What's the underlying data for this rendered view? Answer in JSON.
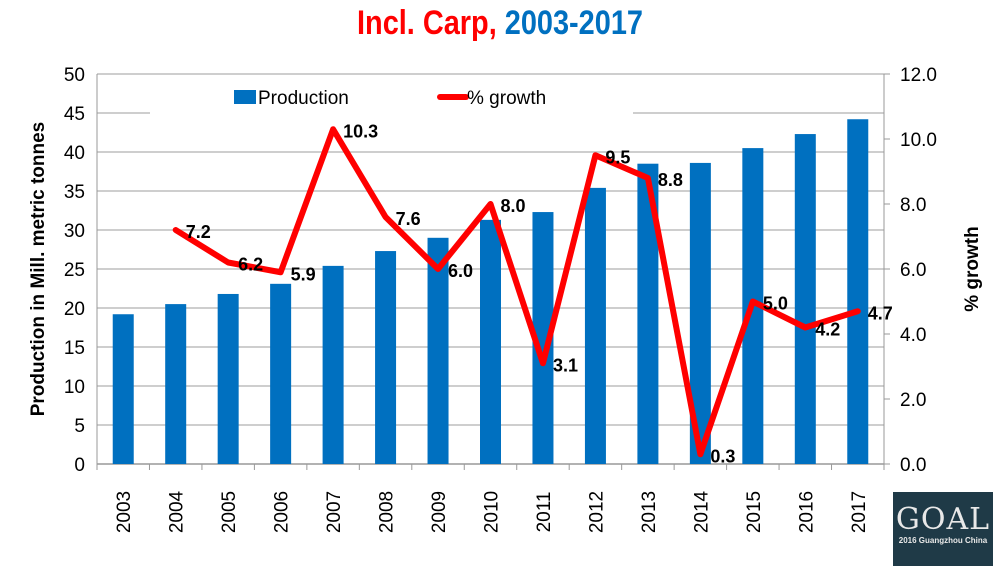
{
  "title": {
    "part1": "Incl. Carp,",
    "part2": " 2003-2017"
  },
  "logo": {
    "text": "GOAL",
    "sub": "2016 Guangzhou China"
  },
  "chart_data": {
    "type": "bar+line",
    "title": "Incl. Carp, 2003-2017",
    "categories": [
      "2003",
      "2004",
      "2005",
      "2006",
      "2007",
      "2008",
      "2009",
      "2010",
      "2011",
      "2012",
      "2013",
      "2014",
      "2015",
      "2016",
      "2017"
    ],
    "series": [
      {
        "name": "Production",
        "type": "bar",
        "axis": "left",
        "color": "#0070c0",
        "values": [
          19.2,
          20.5,
          21.8,
          23.1,
          25.4,
          27.3,
          29.0,
          31.3,
          32.3,
          35.4,
          38.5,
          38.6,
          40.5,
          42.3,
          44.2
        ]
      },
      {
        "name": "% growth",
        "type": "line",
        "axis": "right",
        "color": "#ff0000",
        "values": [
          null,
          7.2,
          6.2,
          5.9,
          10.3,
          7.6,
          6.0,
          8.0,
          3.1,
          9.5,
          8.8,
          0.3,
          5.0,
          4.2,
          4.7
        ],
        "labels": [
          "",
          "7.2",
          "6.2",
          "5.9",
          "10.3",
          "7.6",
          "6.0",
          "8.0",
          "3.1",
          "9.5",
          "8.8",
          "0.3",
          "5.0",
          "4.2",
          "4.7"
        ]
      }
    ],
    "ylabel": "Production in Mill. metric tonnes",
    "ylim": [
      0,
      50
    ],
    "yticks": [
      "0",
      "5",
      "10",
      "15",
      "20",
      "25",
      "30",
      "35",
      "40",
      "45",
      "50"
    ],
    "y2label": "% growth",
    "y2lim": [
      0,
      12
    ],
    "y2ticks": [
      "0.0",
      "2.0",
      "4.0",
      "6.0",
      "8.0",
      "10.0",
      "12.0"
    ],
    "grid": true,
    "legend": "top"
  }
}
